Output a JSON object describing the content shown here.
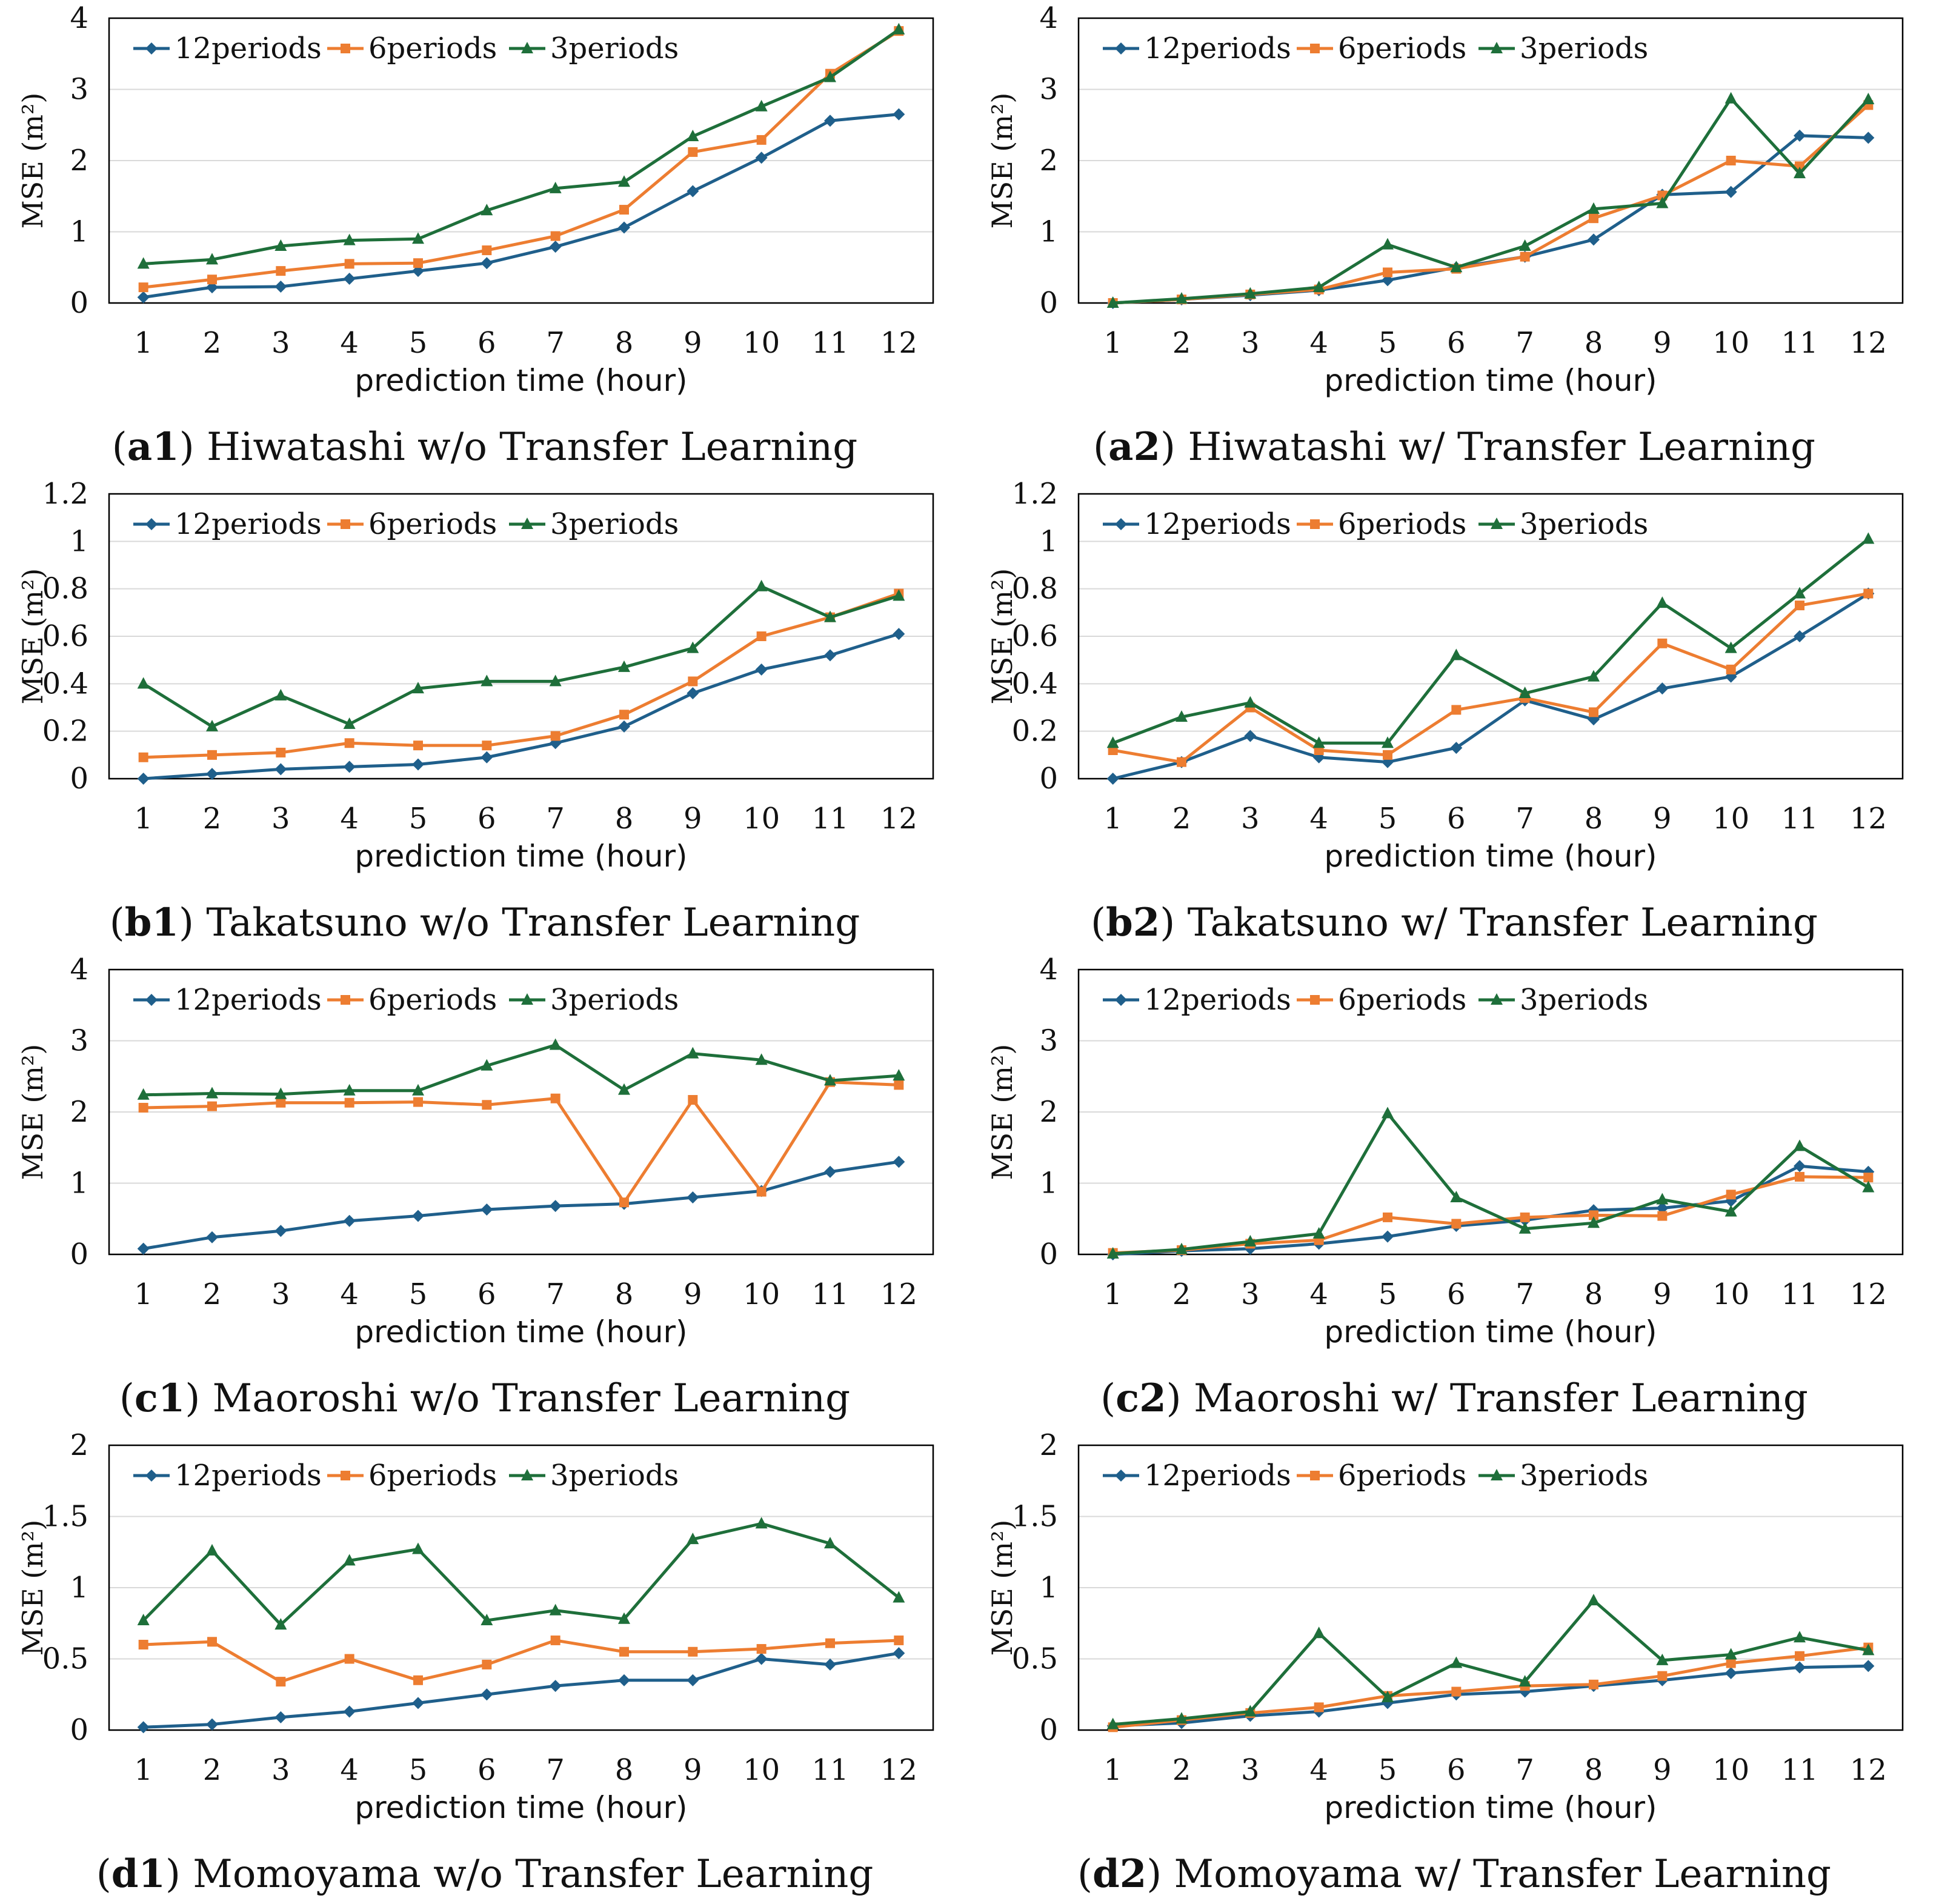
{
  "colors": {
    "series_12": "#1f5f8b",
    "series_6": "#ed7d31",
    "series_3": "#1e6f3a",
    "axis": "#000000",
    "grid": "#d9d9d9"
  },
  "chart_data": [
    {
      "id": "a1",
      "type": "line",
      "caption_label": "a1",
      "caption_text": "Hiwatashi w/o Transfer Learning",
      "xlabel": "prediction time (hour)",
      "ylabel": "MSE (m²)",
      "categories": [
        "1",
        "2",
        "3",
        "4",
        "5",
        "6",
        "7",
        "8",
        "9",
        "10",
        "11",
        "12"
      ],
      "yticks": [
        "0",
        "1",
        "2",
        "3",
        "4"
      ],
      "ylim": [
        0,
        4
      ],
      "grid": true,
      "series": [
        {
          "name": "12periods",
          "marker": "diamond",
          "values": [
            0.08,
            0.22,
            0.23,
            0.34,
            0.45,
            0.56,
            0.79,
            1.06,
            1.57,
            2.04,
            2.56,
            2.65
          ]
        },
        {
          "name": "6periods",
          "marker": "square",
          "values": [
            0.22,
            0.33,
            0.45,
            0.55,
            0.56,
            0.74,
            0.94,
            1.31,
            2.12,
            2.29,
            3.22,
            3.82
          ]
        },
        {
          "name": "3periods",
          "marker": "triangle",
          "values": [
            0.55,
            0.61,
            0.8,
            0.88,
            0.9,
            1.3,
            1.61,
            1.7,
            2.34,
            2.76,
            3.17,
            3.84
          ]
        }
      ]
    },
    {
      "id": "a2",
      "type": "line",
      "caption_label": "a2",
      "caption_text": "Hiwatashi w/ Transfer Learning",
      "xlabel": "prediction time (hour)",
      "ylabel": "MSE (m²)",
      "categories": [
        "1",
        "2",
        "3",
        "4",
        "5",
        "6",
        "7",
        "8",
        "9",
        "10",
        "11",
        "12"
      ],
      "yticks": [
        "0",
        "1",
        "2",
        "3",
        "4"
      ],
      "ylim": [
        0,
        4
      ],
      "grid": true,
      "series": [
        {
          "name": "12periods",
          "marker": "diamond",
          "values": [
            0.0,
            0.05,
            0.11,
            0.18,
            0.32,
            0.5,
            0.65,
            0.89,
            1.52,
            1.56,
            2.35,
            2.32
          ]
        },
        {
          "name": "6periods",
          "marker": "square",
          "values": [
            0.0,
            0.05,
            0.12,
            0.19,
            0.43,
            0.48,
            0.65,
            1.19,
            1.51,
            2.0,
            1.92,
            2.78
          ]
        },
        {
          "name": "3periods",
          "marker": "triangle",
          "values": [
            0.0,
            0.06,
            0.13,
            0.22,
            0.82,
            0.5,
            0.8,
            1.32,
            1.4,
            2.87,
            1.82,
            2.86
          ]
        }
      ]
    },
    {
      "id": "b1",
      "type": "line",
      "caption_label": "b1",
      "caption_text": "Takatsuno w/o Transfer Learning",
      "xlabel": "prediction time (hour)",
      "ylabel": "MSE (m²)",
      "categories": [
        "1",
        "2",
        "3",
        "4",
        "5",
        "6",
        "7",
        "8",
        "9",
        "10",
        "11",
        "12"
      ],
      "yticks": [
        "0",
        "0.2",
        "0.4",
        "0.6",
        "0.8",
        "1",
        "1.2"
      ],
      "ylim": [
        0,
        1.2
      ],
      "grid": true,
      "series": [
        {
          "name": "12periods",
          "marker": "diamond",
          "values": [
            0.0,
            0.02,
            0.04,
            0.05,
            0.06,
            0.09,
            0.15,
            0.22,
            0.36,
            0.46,
            0.52,
            0.61
          ]
        },
        {
          "name": "6periods",
          "marker": "square",
          "values": [
            0.09,
            0.1,
            0.11,
            0.15,
            0.14,
            0.14,
            0.18,
            0.27,
            0.41,
            0.6,
            0.68,
            0.78
          ]
        },
        {
          "name": "3periods",
          "marker": "triangle",
          "values": [
            0.4,
            0.22,
            0.35,
            0.23,
            0.38,
            0.41,
            0.41,
            0.47,
            0.55,
            0.81,
            0.68,
            0.77
          ]
        }
      ]
    },
    {
      "id": "b2",
      "type": "line",
      "caption_label": "b2",
      "caption_text": "Takatsuno w/ Transfer Learning",
      "xlabel": "prediction time (hour)",
      "ylabel": "MSE (m²)",
      "categories": [
        "1",
        "2",
        "3",
        "4",
        "5",
        "6",
        "7",
        "8",
        "9",
        "10",
        "11",
        "12"
      ],
      "yticks": [
        "0",
        "0.2",
        "0.4",
        "0.6",
        "0.8",
        "1",
        "1.2"
      ],
      "ylim": [
        0,
        1.2
      ],
      "grid": true,
      "series": [
        {
          "name": "12periods",
          "marker": "diamond",
          "values": [
            0.0,
            0.07,
            0.18,
            0.09,
            0.07,
            0.13,
            0.33,
            0.25,
            0.38,
            0.43,
            0.6,
            0.78
          ]
        },
        {
          "name": "6periods",
          "marker": "square",
          "values": [
            0.12,
            0.07,
            0.3,
            0.12,
            0.1,
            0.29,
            0.34,
            0.28,
            0.57,
            0.46,
            0.73,
            0.78
          ]
        },
        {
          "name": "3periods",
          "marker": "triangle",
          "values": [
            0.15,
            0.26,
            0.32,
            0.15,
            0.15,
            0.52,
            0.36,
            0.43,
            0.74,
            0.55,
            0.78,
            1.01
          ]
        }
      ]
    },
    {
      "id": "c1",
      "type": "line",
      "caption_label": "c1",
      "caption_text": "Maoroshi w/o Transfer Learning",
      "xlabel": "prediction time (hour)",
      "ylabel": "MSE (m²)",
      "categories": [
        "1",
        "2",
        "3",
        "4",
        "5",
        "6",
        "7",
        "8",
        "9",
        "10",
        "11",
        "12"
      ],
      "yticks": [
        "0",
        "1",
        "2",
        "3",
        "4"
      ],
      "ylim": [
        0,
        4
      ],
      "grid": true,
      "series": [
        {
          "name": "12periods",
          "marker": "diamond",
          "values": [
            0.08,
            0.24,
            0.33,
            0.47,
            0.54,
            0.63,
            0.68,
            0.71,
            0.8,
            0.89,
            1.16,
            1.3
          ]
        },
        {
          "name": "6periods",
          "marker": "square",
          "values": [
            2.06,
            2.08,
            2.13,
            2.13,
            2.14,
            2.1,
            2.19,
            0.73,
            2.17,
            0.88,
            2.42,
            2.38
          ]
        },
        {
          "name": "3periods",
          "marker": "triangle",
          "values": [
            2.24,
            2.26,
            2.25,
            2.3,
            2.3,
            2.65,
            2.94,
            2.31,
            2.82,
            2.73,
            2.44,
            2.51
          ]
        }
      ]
    },
    {
      "id": "c2",
      "type": "line",
      "caption_label": "c2",
      "caption_text": "Maoroshi w/ Transfer Learning",
      "xlabel": "prediction time (hour)",
      "ylabel": "MSE (m²)",
      "categories": [
        "1",
        "2",
        "3",
        "4",
        "5",
        "6",
        "7",
        "8",
        "9",
        "10",
        "11",
        "12"
      ],
      "yticks": [
        "0",
        "1",
        "2",
        "3",
        "4"
      ],
      "ylim": [
        0,
        4
      ],
      "grid": true,
      "series": [
        {
          "name": "12periods",
          "marker": "diamond",
          "values": [
            0.0,
            0.05,
            0.08,
            0.15,
            0.25,
            0.4,
            0.48,
            0.62,
            0.65,
            0.75,
            1.24,
            1.16
          ]
        },
        {
          "name": "6periods",
          "marker": "square",
          "values": [
            0.02,
            0.06,
            0.15,
            0.2,
            0.52,
            0.43,
            0.52,
            0.55,
            0.54,
            0.84,
            1.09,
            1.08
          ]
        },
        {
          "name": "3periods",
          "marker": "triangle",
          "values": [
            0.01,
            0.07,
            0.18,
            0.29,
            1.98,
            0.8,
            0.36,
            0.44,
            0.77,
            0.6,
            1.52,
            0.94
          ]
        }
      ]
    },
    {
      "id": "d1",
      "type": "line",
      "caption_label": "d1",
      "caption_text": "Momoyama w/o Transfer Learning",
      "xlabel": "prediction time (hour)",
      "ylabel": "MSE (m²)",
      "categories": [
        "1",
        "2",
        "3",
        "4",
        "5",
        "6",
        "7",
        "8",
        "9",
        "10",
        "11",
        "12"
      ],
      "yticks": [
        "0",
        "0.5",
        "1",
        "1.5",
        "2"
      ],
      "ylim": [
        0,
        2
      ],
      "grid": true,
      "series": [
        {
          "name": "12periods",
          "marker": "diamond",
          "values": [
            0.02,
            0.04,
            0.09,
            0.13,
            0.19,
            0.25,
            0.31,
            0.35,
            0.35,
            0.5,
            0.46,
            0.54
          ]
        },
        {
          "name": "6periods",
          "marker": "square",
          "values": [
            0.6,
            0.62,
            0.34,
            0.5,
            0.35,
            0.46,
            0.63,
            0.55,
            0.55,
            0.57,
            0.61,
            0.63
          ]
        },
        {
          "name": "3periods",
          "marker": "triangle",
          "values": [
            0.77,
            1.26,
            0.74,
            1.19,
            1.27,
            0.77,
            0.84,
            0.78,
            1.34,
            1.45,
            1.31,
            0.93
          ]
        }
      ]
    },
    {
      "id": "d2",
      "type": "line",
      "caption_label": "d2",
      "caption_text": "Momoyama w/ Transfer Learning",
      "xlabel": "prediction time (hour)",
      "ylabel": "MSE (m²)",
      "categories": [
        "1",
        "2",
        "3",
        "4",
        "5",
        "6",
        "7",
        "8",
        "9",
        "10",
        "11",
        "12"
      ],
      "yticks": [
        "0",
        "0.5",
        "1",
        "1.5",
        "2"
      ],
      "ylim": [
        0,
        2
      ],
      "grid": true,
      "series": [
        {
          "name": "12periods",
          "marker": "diamond",
          "values": [
            0.03,
            0.05,
            0.1,
            0.13,
            0.19,
            0.25,
            0.27,
            0.31,
            0.35,
            0.4,
            0.44,
            0.45
          ]
        },
        {
          "name": "6periods",
          "marker": "square",
          "values": [
            0.02,
            0.07,
            0.12,
            0.16,
            0.24,
            0.27,
            0.31,
            0.32,
            0.38,
            0.47,
            0.52,
            0.58
          ]
        },
        {
          "name": "3periods",
          "marker": "triangle",
          "values": [
            0.04,
            0.08,
            0.13,
            0.68,
            0.23,
            0.47,
            0.34,
            0.91,
            0.49,
            0.53,
            0.65,
            0.56
          ]
        }
      ]
    }
  ]
}
